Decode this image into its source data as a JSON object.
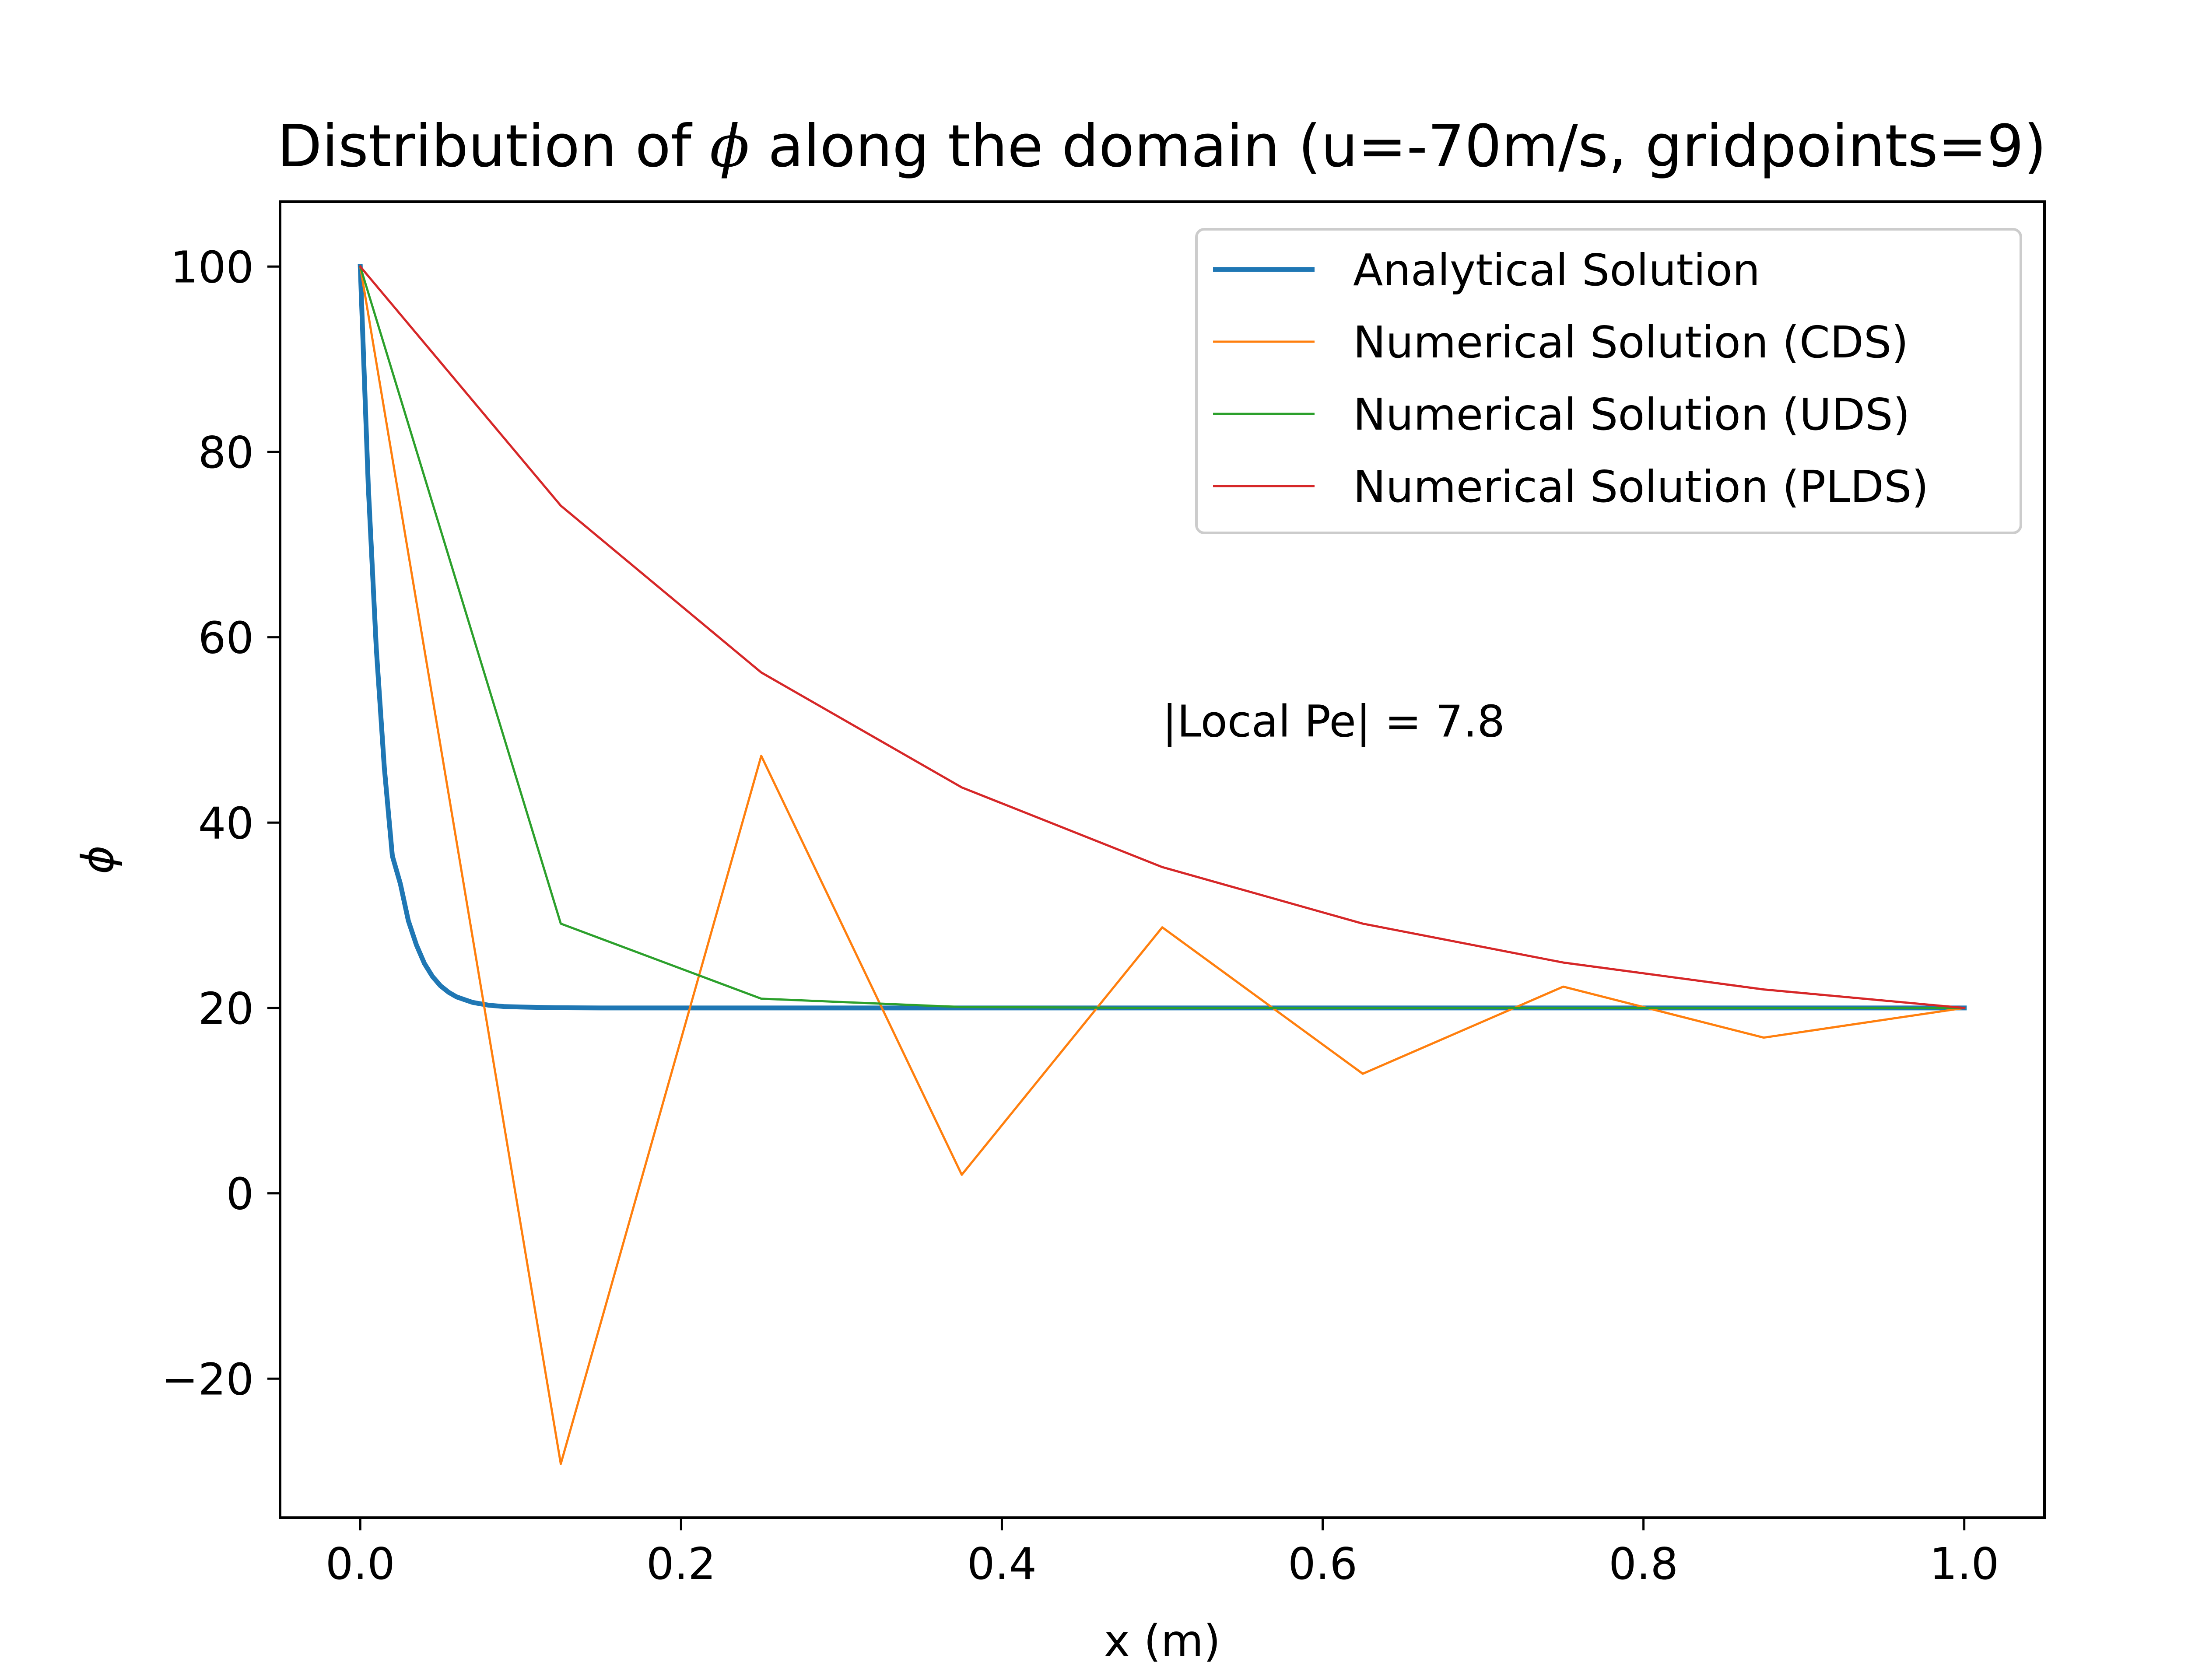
{
  "chart_data": {
    "type": "line",
    "title_parts": {
      "before": "Distribution of ",
      "symbol": "ϕ",
      "after": " along the domain (u=-70m/s, gridpoints=9)"
    },
    "xlabel": "x (m)",
    "ylabel": "ϕ",
    "xlim": [
      -0.05,
      1.05
    ],
    "ylim": [
      -35,
      107
    ],
    "x_ticks": [
      0.0,
      0.2,
      0.4,
      0.6,
      0.8,
      1.0
    ],
    "x_tick_labels": [
      "0.0",
      "0.2",
      "0.4",
      "0.6",
      "0.8",
      "1.0"
    ],
    "y_ticks": [
      -20,
      0,
      20,
      40,
      60,
      80,
      100
    ],
    "y_tick_labels": [
      "−20",
      "0",
      "20",
      "40",
      "60",
      "80",
      "100"
    ],
    "grid": false,
    "legend_position": "top-right",
    "annotation": {
      "text": "|Local Pe| = 7.8",
      "x": 0.5,
      "y": 51
    },
    "series": [
      {
        "name": "Analytical Solution",
        "color": "#1f77b4",
        "line_weight": "thick",
        "x": [
          0.0,
          0.005,
          0.01,
          0.015,
          0.02,
          0.025,
          0.03,
          0.035,
          0.04,
          0.045,
          0.05,
          0.055,
          0.06,
          0.065,
          0.07,
          0.075,
          0.08,
          0.09,
          0.1,
          0.12,
          0.15,
          0.2,
          0.3,
          0.5,
          0.7,
          1.0
        ],
        "y": [
          100,
          76.3,
          58.8,
          45.9,
          36.4,
          33.4,
          29.4,
          26.8,
          24.8,
          23.4,
          22.4,
          21.7,
          21.2,
          20.9,
          20.6,
          20.45,
          20.3,
          20.15,
          20.1,
          20.03,
          20.0,
          20.0,
          20.0,
          20.0,
          20.0,
          20.0
        ]
      },
      {
        "name": "Numerical Solution (CDS)",
        "color": "#ff7f0e",
        "line_weight": "thin",
        "x": [
          0.0,
          0.125,
          0.25,
          0.375,
          0.5,
          0.625,
          0.75,
          0.875,
          1.0
        ],
        "y": [
          100,
          -29.2,
          47.2,
          2.0,
          28.7,
          12.9,
          22.3,
          16.8,
          20.0
        ]
      },
      {
        "name": "Numerical Solution (UDS)",
        "color": "#2ca02c",
        "line_weight": "thin",
        "x": [
          0.0,
          0.125,
          0.25,
          0.375,
          0.5,
          0.625,
          0.75,
          0.875,
          1.0
        ],
        "y": [
          100,
          29.1,
          21.0,
          20.1,
          20.0,
          20.0,
          20.0,
          20.0,
          20.0
        ]
      },
      {
        "name": "Numerical Solution (PLDS)",
        "color": "#d62728",
        "line_weight": "thin",
        "x": [
          0.0,
          0.125,
          0.25,
          0.375,
          0.5,
          0.625,
          0.75,
          0.875,
          1.0
        ],
        "y": [
          100,
          74.2,
          56.2,
          43.8,
          35.2,
          29.1,
          24.9,
          22.0,
          20.0
        ]
      }
    ]
  }
}
